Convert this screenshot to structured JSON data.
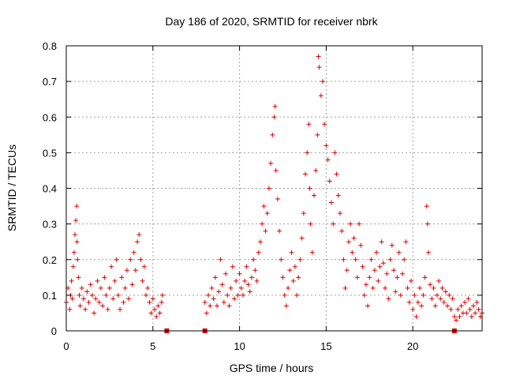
{
  "chart_data": {
    "type": "scatter",
    "title": "Day 186 of 2020, SRMTID for receiver nbrk",
    "xlabel": "GPS time / hours",
    "ylabel": "SRMTID / TECUs",
    "xlim": [
      0,
      24
    ],
    "ylim": [
      0,
      0.8
    ],
    "xticks": [
      0,
      5,
      10,
      15,
      20
    ],
    "yticks": [
      0,
      0.1,
      0.2,
      0.3,
      0.4,
      0.5,
      0.6,
      0.7,
      0.8
    ],
    "grid": true,
    "marker": "+",
    "color": "#e00000",
    "series": [
      {
        "name": "SRMTID",
        "description": "Dense scatter of plus markers; values listed approximate the visible point cloud",
        "points": [
          [
            0.0,
            0.08
          ],
          [
            0.1,
            0.12
          ],
          [
            0.2,
            0.06
          ],
          [
            0.25,
            0.1
          ],
          [
            0.3,
            0.14
          ],
          [
            0.35,
            0.09
          ],
          [
            0.4,
            0.18
          ],
          [
            0.45,
            0.22
          ],
          [
            0.5,
            0.27
          ],
          [
            0.55,
            0.31
          ],
          [
            0.6,
            0.35
          ],
          [
            0.62,
            0.25
          ],
          [
            0.65,
            0.2
          ],
          [
            0.7,
            0.15
          ],
          [
            0.75,
            0.1
          ],
          [
            0.8,
            0.07
          ],
          [
            0.9,
            0.12
          ],
          [
            1.0,
            0.09
          ],
          [
            1.1,
            0.06
          ],
          [
            1.2,
            0.11
          ],
          [
            1.3,
            0.08
          ],
          [
            1.4,
            0.13
          ],
          [
            1.5,
            0.1
          ],
          [
            1.6,
            0.05
          ],
          [
            1.7,
            0.09
          ],
          [
            1.8,
            0.14
          ],
          [
            1.9,
            0.08
          ],
          [
            2.0,
            0.12
          ],
          [
            2.1,
            0.07
          ],
          [
            2.2,
            0.15
          ],
          [
            2.3,
            0.1
          ],
          [
            2.4,
            0.06
          ],
          [
            2.5,
            0.12
          ],
          [
            2.6,
            0.18
          ],
          [
            2.7,
            0.09
          ],
          [
            2.8,
            0.14
          ],
          [
            2.9,
            0.2
          ],
          [
            3.0,
            0.1
          ],
          [
            3.1,
            0.06
          ],
          [
            3.2,
            0.15
          ],
          [
            3.3,
            0.08
          ],
          [
            3.4,
            0.12
          ],
          [
            3.5,
            0.17
          ],
          [
            3.6,
            0.09
          ],
          [
            3.7,
            0.2
          ],
          [
            3.8,
            0.13
          ],
          [
            3.9,
            0.22
          ],
          [
            4.0,
            0.17
          ],
          [
            4.1,
            0.25
          ],
          [
            4.2,
            0.27
          ],
          [
            4.3,
            0.2
          ],
          [
            4.4,
            0.14
          ],
          [
            4.5,
            0.18
          ],
          [
            4.6,
            0.1
          ],
          [
            4.7,
            0.12
          ],
          [
            4.8,
            0.08
          ],
          [
            4.9,
            0.05
          ],
          [
            5.0,
            0.09
          ],
          [
            5.1,
            0.06
          ],
          [
            5.2,
            0.04
          ],
          [
            5.3,
            0.07
          ],
          [
            5.4,
            0.05
          ],
          [
            5.5,
            0.08
          ],
          [
            5.55,
            0.1
          ],
          [
            8.0,
            0.08
          ],
          [
            8.1,
            0.05
          ],
          [
            8.2,
            0.1
          ],
          [
            8.3,
            0.07
          ],
          [
            8.4,
            0.12
          ],
          [
            8.5,
            0.09
          ],
          [
            8.6,
            0.15
          ],
          [
            8.7,
            0.07
          ],
          [
            8.8,
            0.11
          ],
          [
            8.9,
            0.2
          ],
          [
            9.0,
            0.13
          ],
          [
            9.1,
            0.08
          ],
          [
            9.2,
            0.16
          ],
          [
            9.3,
            0.1
          ],
          [
            9.4,
            0.07
          ],
          [
            9.5,
            0.12
          ],
          [
            9.6,
            0.18
          ],
          [
            9.7,
            0.09
          ],
          [
            9.8,
            0.14
          ],
          [
            9.9,
            0.1
          ],
          [
            10.0,
            0.16
          ],
          [
            10.1,
            0.12
          ],
          [
            10.2,
            0.1
          ],
          [
            10.3,
            0.14
          ],
          [
            10.4,
            0.18
          ],
          [
            10.5,
            0.13
          ],
          [
            10.6,
            0.11
          ],
          [
            10.7,
            0.15
          ],
          [
            10.8,
            0.2
          ],
          [
            10.9,
            0.17
          ],
          [
            11.0,
            0.14
          ],
          [
            11.1,
            0.22
          ],
          [
            11.2,
            0.25
          ],
          [
            11.3,
            0.3
          ],
          [
            11.4,
            0.35
          ],
          [
            11.5,
            0.28
          ],
          [
            11.6,
            0.33
          ],
          [
            11.7,
            0.4
          ],
          [
            11.8,
            0.47
          ],
          [
            11.9,
            0.55
          ],
          [
            12.0,
            0.6
          ],
          [
            12.05,
            0.63
          ],
          [
            12.1,
            0.45
          ],
          [
            12.2,
            0.37
          ],
          [
            12.3,
            0.28
          ],
          [
            12.4,
            0.2
          ],
          [
            12.5,
            0.15
          ],
          [
            12.6,
            0.1
          ],
          [
            12.7,
            0.07
          ],
          [
            12.8,
            0.12
          ],
          [
            12.9,
            0.17
          ],
          [
            13.0,
            0.22
          ],
          [
            13.1,
            0.14
          ],
          [
            13.2,
            0.18
          ],
          [
            13.3,
            0.1
          ],
          [
            13.4,
            0.15
          ],
          [
            13.5,
            0.2
          ],
          [
            13.6,
            0.26
          ],
          [
            13.7,
            0.33
          ],
          [
            13.8,
            0.44
          ],
          [
            13.9,
            0.5
          ],
          [
            14.0,
            0.58
          ],
          [
            14.05,
            0.4
          ],
          [
            14.1,
            0.3
          ],
          [
            14.2,
            0.22
          ],
          [
            14.3,
            0.38
          ],
          [
            14.4,
            0.45
          ],
          [
            14.5,
            0.55
          ],
          [
            14.55,
            0.77
          ],
          [
            14.6,
            0.74
          ],
          [
            14.7,
            0.66
          ],
          [
            14.8,
            0.7
          ],
          [
            14.9,
            0.58
          ],
          [
            15.0,
            0.52
          ],
          [
            15.1,
            0.48
          ],
          [
            15.2,
            0.42
          ],
          [
            15.3,
            0.36
          ],
          [
            15.4,
            0.3
          ],
          [
            15.5,
            0.5
          ],
          [
            15.6,
            0.44
          ],
          [
            15.7,
            0.38
          ],
          [
            15.8,
            0.33
          ],
          [
            15.9,
            0.28
          ],
          [
            16.0,
            0.2
          ],
          [
            16.1,
            0.12
          ],
          [
            16.2,
            0.17
          ],
          [
            16.3,
            0.25
          ],
          [
            16.4,
            0.3
          ],
          [
            16.5,
            0.22
          ],
          [
            16.6,
            0.26
          ],
          [
            16.7,
            0.2
          ],
          [
            16.8,
            0.15
          ],
          [
            16.9,
            0.3
          ],
          [
            17.0,
            0.24
          ],
          [
            17.1,
            0.18
          ],
          [
            17.2,
            0.1
          ],
          [
            17.3,
            0.13
          ],
          [
            17.4,
            0.07
          ],
          [
            17.5,
            0.15
          ],
          [
            17.6,
            0.2
          ],
          [
            17.7,
            0.12
          ],
          [
            17.8,
            0.17
          ],
          [
            17.9,
            0.22
          ],
          [
            18.0,
            0.14
          ],
          [
            18.1,
            0.18
          ],
          [
            18.2,
            0.25
          ],
          [
            18.3,
            0.19
          ],
          [
            18.4,
            0.12
          ],
          [
            18.5,
            0.16
          ],
          [
            18.6,
            0.09
          ],
          [
            18.7,
            0.2
          ],
          [
            18.8,
            0.24
          ],
          [
            18.9,
            0.17
          ],
          [
            19.0,
            0.11
          ],
          [
            19.1,
            0.15
          ],
          [
            19.2,
            0.22
          ],
          [
            19.3,
            0.1
          ],
          [
            19.4,
            0.16
          ],
          [
            19.5,
            0.2
          ],
          [
            19.6,
            0.25
          ],
          [
            19.7,
            0.12
          ],
          [
            19.8,
            0.08
          ],
          [
            19.9,
            0.14
          ],
          [
            20.0,
            0.06
          ],
          [
            20.1,
            0.1
          ],
          [
            20.2,
            0.04
          ],
          [
            20.3,
            0.08
          ],
          [
            20.4,
            0.12
          ],
          [
            20.5,
            0.07
          ],
          [
            20.6,
            0.1
          ],
          [
            20.7,
            0.15
          ],
          [
            20.8,
            0.35
          ],
          [
            20.85,
            0.3
          ],
          [
            20.9,
            0.22
          ],
          [
            21.0,
            0.13
          ],
          [
            21.1,
            0.09
          ],
          [
            21.2,
            0.12
          ],
          [
            21.3,
            0.07
          ],
          [
            21.4,
            0.1
          ],
          [
            21.5,
            0.14
          ],
          [
            21.6,
            0.09
          ],
          [
            21.7,
            0.12
          ],
          [
            21.8,
            0.08
          ],
          [
            21.9,
            0.11
          ],
          [
            22.0,
            0.07
          ],
          [
            22.1,
            0.1
          ],
          [
            22.2,
            0.06
          ],
          [
            22.3,
            0.09
          ],
          [
            22.4,
            0.04
          ],
          [
            22.5,
            0.03
          ],
          [
            22.6,
            0.06
          ],
          [
            22.7,
            0.04
          ],
          [
            22.8,
            0.07
          ],
          [
            22.9,
            0.05
          ],
          [
            23.0,
            0.08
          ],
          [
            23.1,
            0.05
          ],
          [
            23.2,
            0.09
          ],
          [
            23.3,
            0.06
          ],
          [
            23.4,
            0.04
          ],
          [
            23.5,
            0.07
          ],
          [
            23.6,
            0.05
          ],
          [
            23.7,
            0.08
          ],
          [
            23.8,
            0.06
          ],
          [
            23.9,
            0.04
          ],
          [
            24.0,
            0.05
          ]
        ]
      }
    ],
    "gap_markers": [
      5.8,
      8.0,
      22.4
    ]
  }
}
